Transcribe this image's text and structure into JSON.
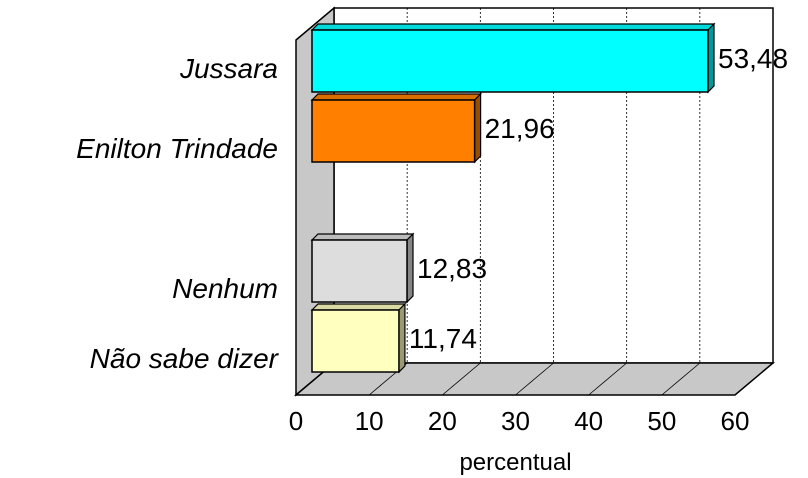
{
  "chart_data": {
    "type": "bar",
    "orientation": "horizontal",
    "style": "3d",
    "categories": [
      "Jussara",
      "Enilton Trindade",
      "Nenhum",
      "Não sabe dizer"
    ],
    "values": [
      53.48,
      21.96,
      12.83,
      11.74
    ],
    "value_labels": [
      "53,48",
      "21,96",
      "12,83",
      "11,74"
    ],
    "colors": [
      "#00FFFF",
      "#FF8000",
      "#DDDDDD",
      "#FFFFC0"
    ],
    "xlabel": "percentual",
    "xlim": [
      0,
      60
    ],
    "xticks": [
      "0",
      "10",
      "20",
      "30",
      "40",
      "50",
      "60"
    ],
    "grid": true,
    "legend": "none"
  }
}
